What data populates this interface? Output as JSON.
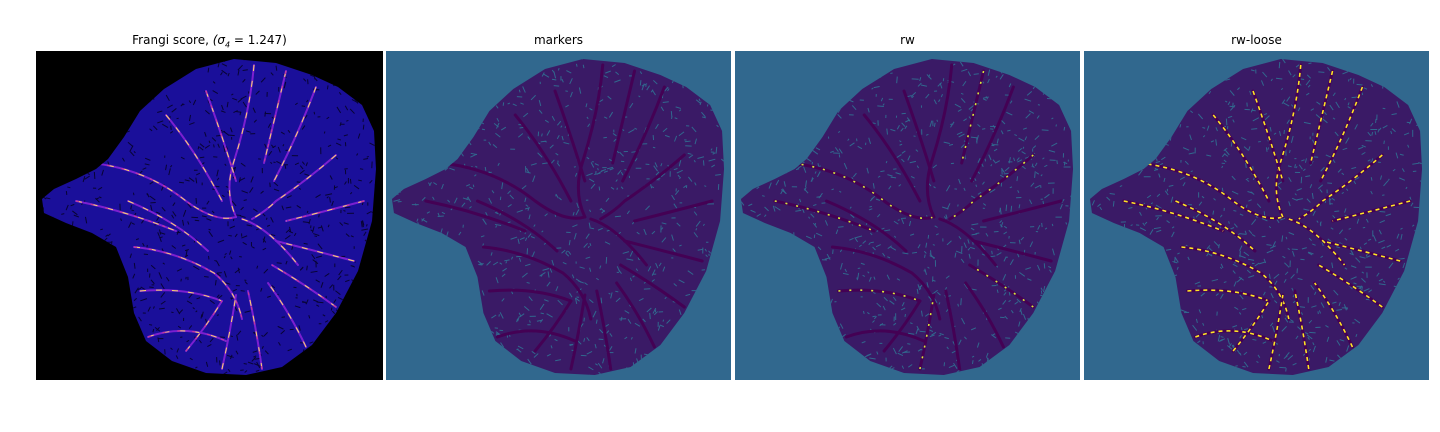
{
  "panels": [
    {
      "title_prefix": "Frangi score, ",
      "title_math": "(σ",
      "title_sub": "4",
      "title_suffix": " = 1.247)",
      "background": "#000000",
      "blob_color": "#1a0f9a",
      "texture_color": "#080433",
      "vessel_colors": [
        "#7b1fd0",
        "#c23a9b",
        "#f07e42",
        "#fcd86a"
      ]
    },
    {
      "title": "markers",
      "background": "#31688e",
      "blob_color": "#3a1a66",
      "texture_color": "#31688e",
      "vessel_colors": [
        "#440154"
      ]
    },
    {
      "title": "rw",
      "background": "#31688e",
      "blob_color": "#3a1a66",
      "texture_color": "#31688e",
      "vessel_colors": [
        "#440154",
        "#d7ec3b"
      ]
    },
    {
      "title": "rw-loose",
      "background": "#31688e",
      "blob_color": "#3a1a66",
      "texture_color": "#31688e",
      "vessel_colors": [
        "#440154",
        "#fde725"
      ]
    }
  ]
}
